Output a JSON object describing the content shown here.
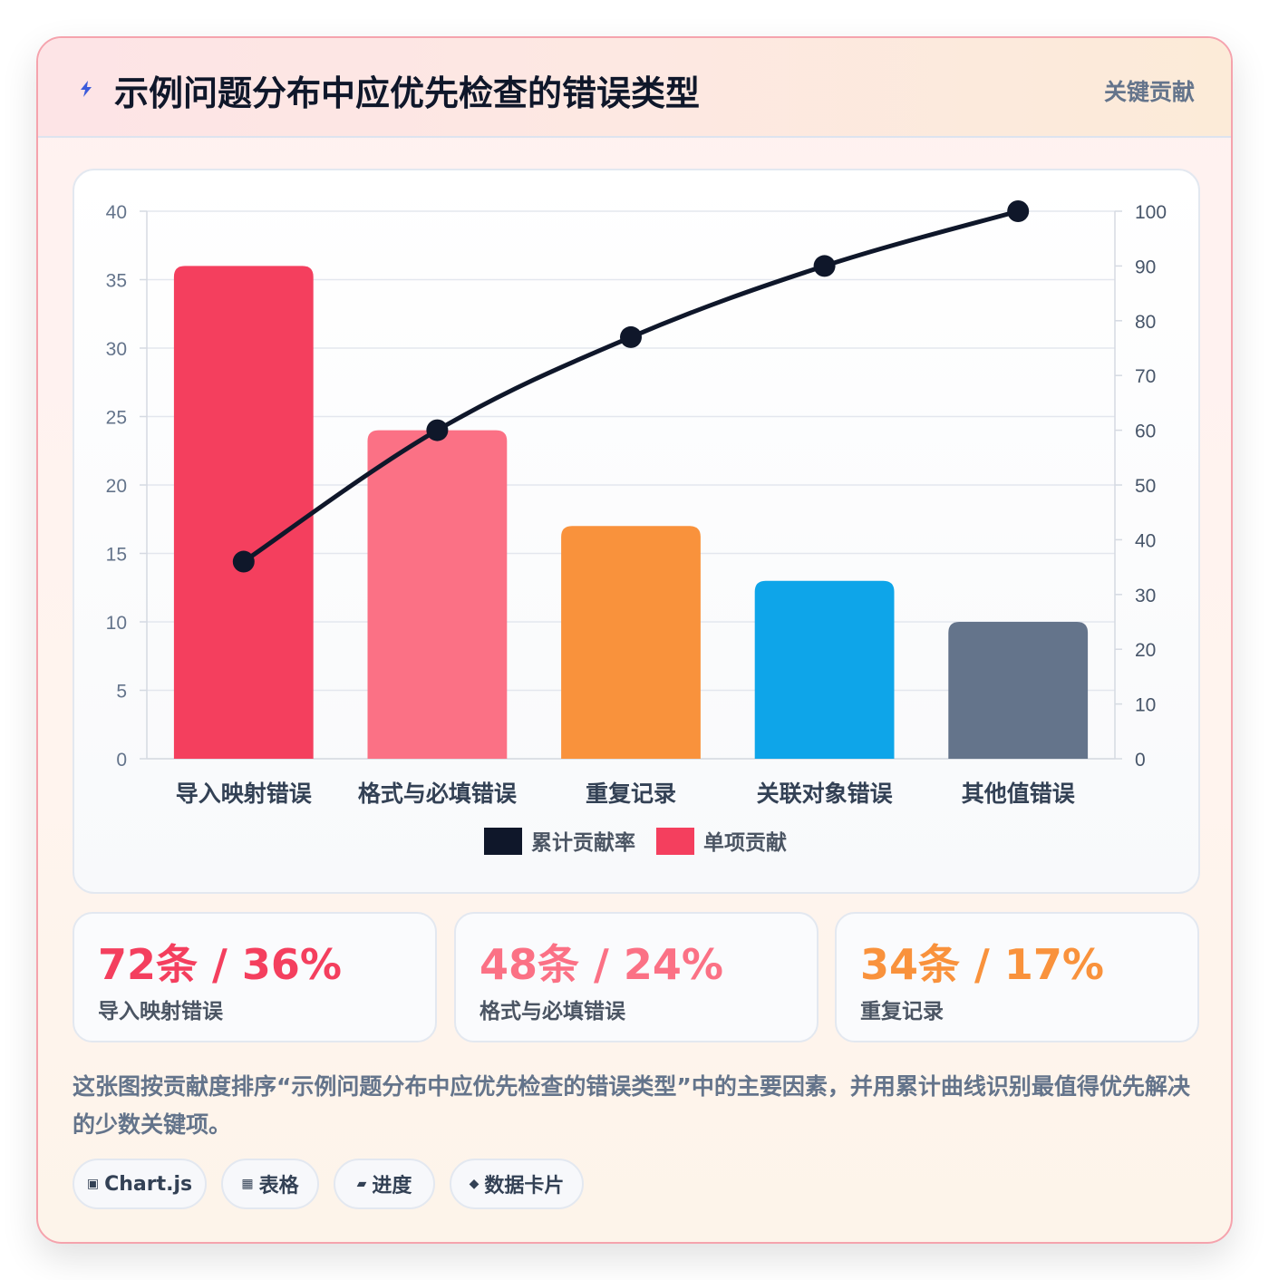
{
  "header": {
    "title": "示例问题分布中应优先检查的错误类型",
    "badge": "关键贡献"
  },
  "chart_data": {
    "type": "bar",
    "categories": [
      "导入映射错误",
      "格式与必填错误",
      "重复记录",
      "关联对象错误",
      "其他值错误"
    ],
    "series": [
      {
        "name": "单项贡献",
        "type": "bar",
        "axis": "left",
        "values": [
          36,
          24,
          17,
          13,
          10
        ],
        "colors": [
          "#f43f5e",
          "#fb7185",
          "#f9923c",
          "#0ea5e9",
          "#64748b"
        ]
      },
      {
        "name": "累计贡献率",
        "type": "line",
        "axis": "right",
        "values": [
          36,
          60,
          77,
          90,
          100
        ],
        "color": "#0f172a"
      }
    ],
    "y_left": {
      "min": 0,
      "max": 40,
      "ticks": [
        "0",
        "5",
        "10",
        "15",
        "20",
        "25",
        "30",
        "35",
        "40"
      ]
    },
    "y_right": {
      "min": 0,
      "max": 100,
      "ticks": [
        "0",
        "10",
        "20",
        "30",
        "40",
        "50",
        "60",
        "70",
        "80",
        "90",
        "100"
      ]
    },
    "legend": [
      {
        "label": "累计贡献率",
        "color": "#0f172a"
      },
      {
        "label": "单项贡献",
        "color": "#f43f5e"
      }
    ],
    "legend_position": "bottom",
    "grid": true
  },
  "stats": [
    {
      "value": "72条 / 36%",
      "label": "导入映射错误",
      "color": "#f43f5e"
    },
    {
      "value": "48条 / 24%",
      "label": "格式与必填错误",
      "color": "#fb7185"
    },
    {
      "value": "34条 / 17%",
      "label": "重复记录",
      "color": "#f9923c"
    }
  ],
  "description": "这张图按贡献度排序“示例问题分布中应优先检查的错误类型”中的主要因素，并用累计曲线识别最值得优先解决的少数关键项。",
  "chips": [
    {
      "icon": "▣",
      "label": "Chart.js"
    },
    {
      "icon": "▦",
      "label": "表格"
    },
    {
      "icon": "▰",
      "label": "进度"
    },
    {
      "icon": "◆",
      "label": "数据卡片"
    }
  ]
}
